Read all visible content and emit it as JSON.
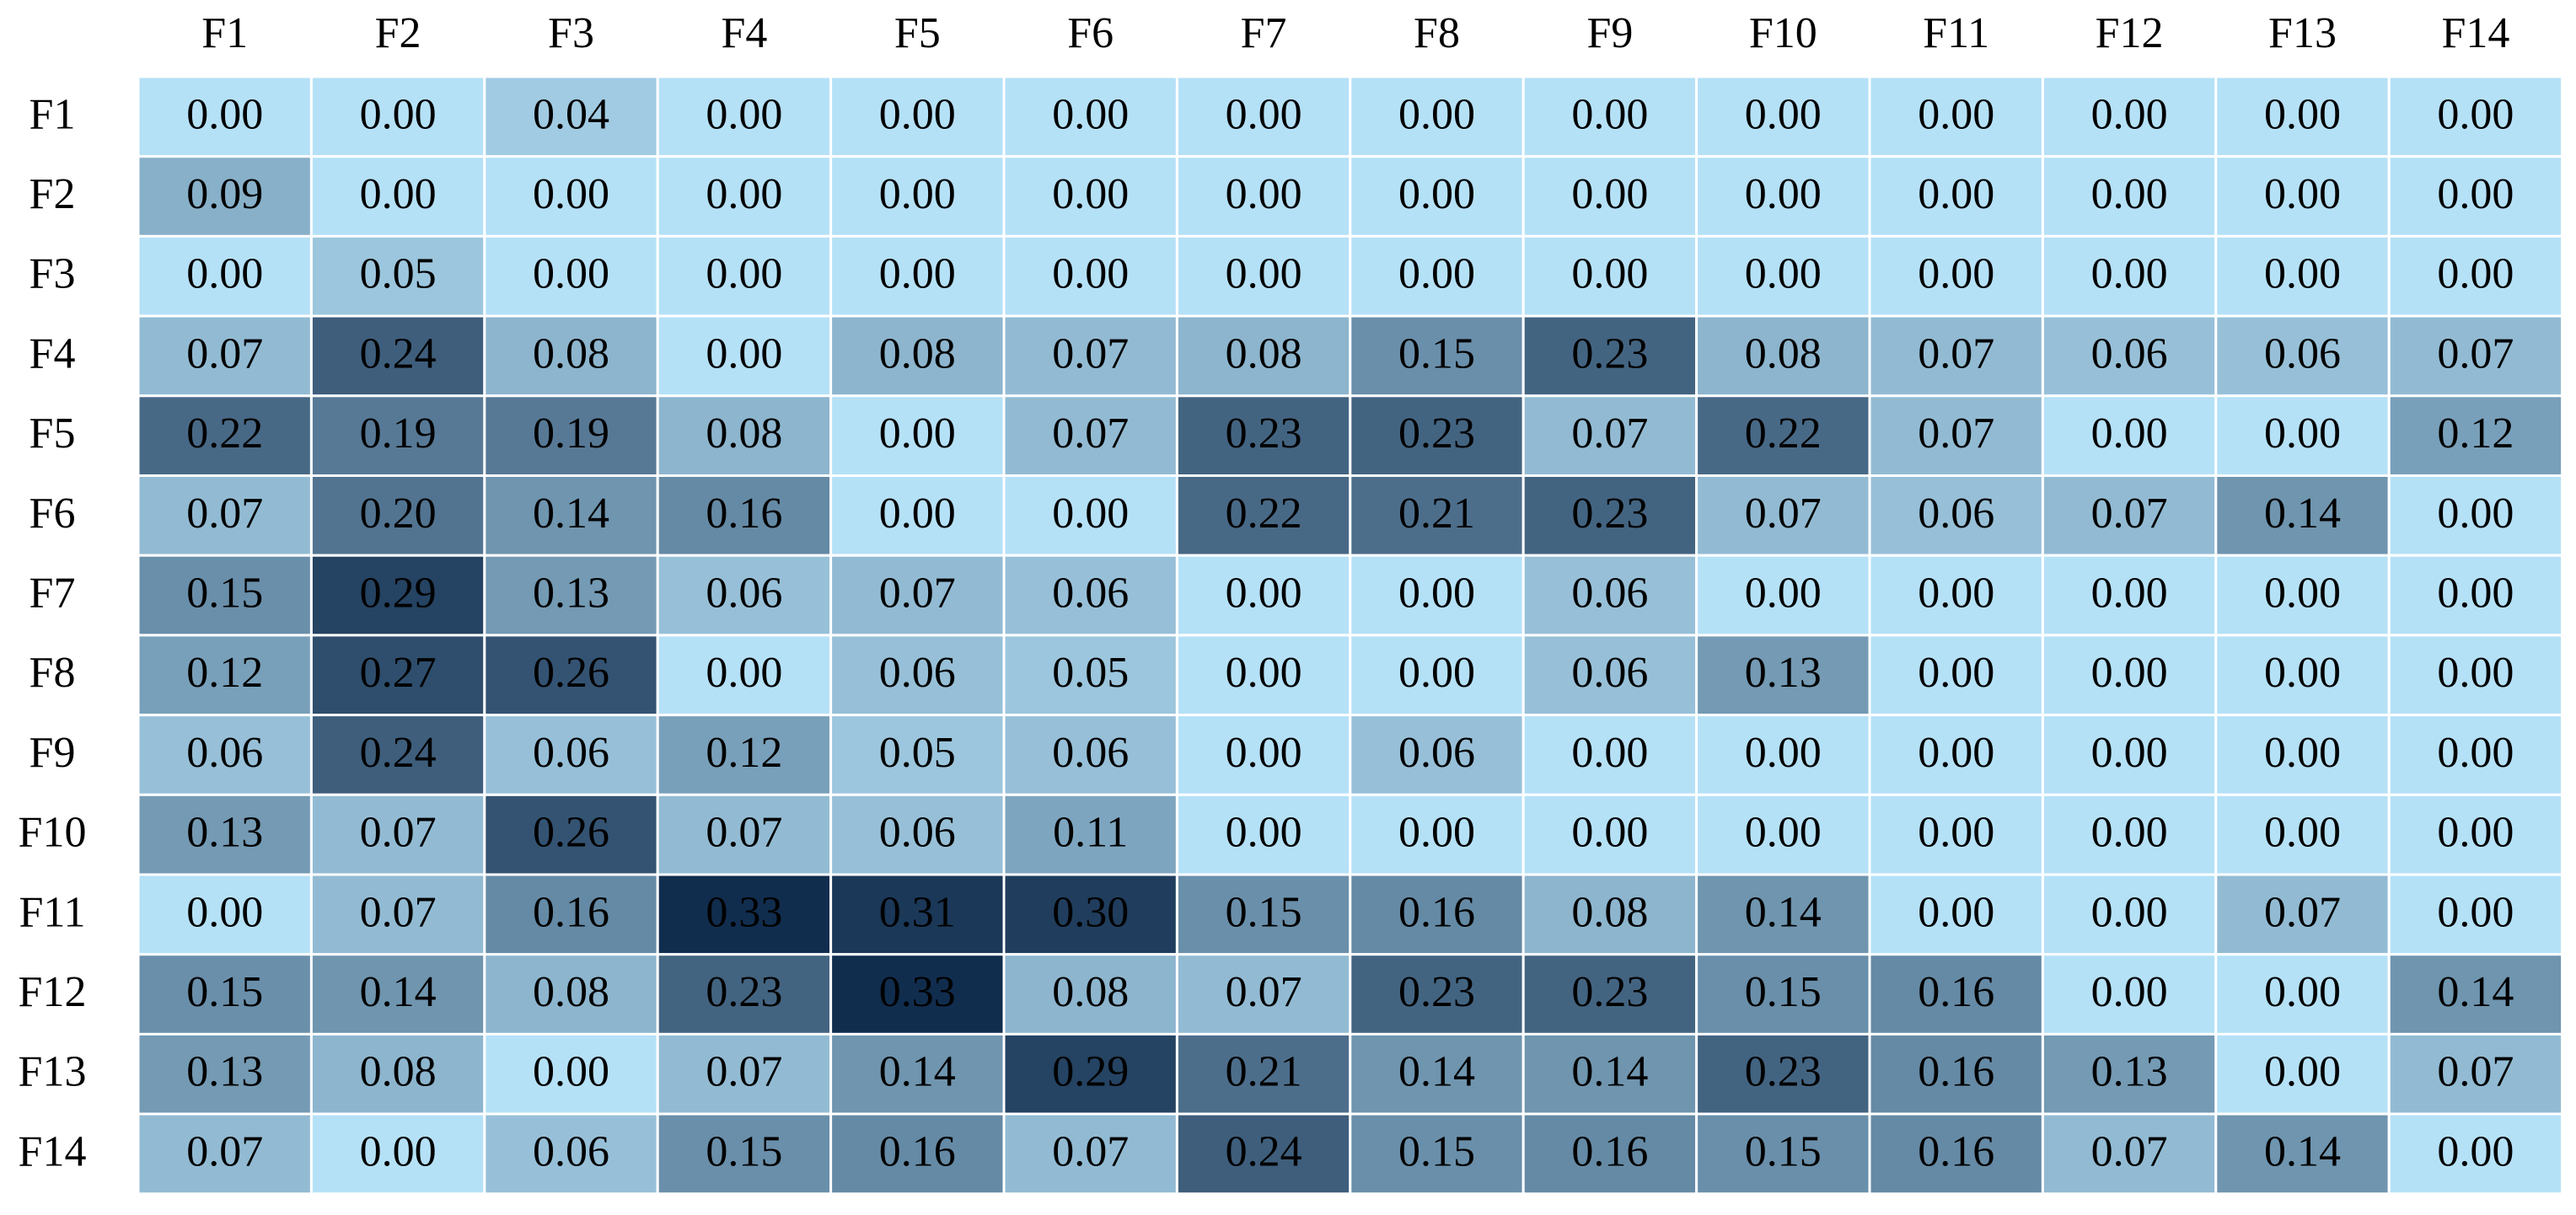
{
  "chart_data": {
    "type": "heatmap",
    "title": "",
    "xlabel": "",
    "ylabel": "",
    "x_labels": [
      "F1",
      "F2",
      "F3",
      "F4",
      "F5",
      "F6",
      "F7",
      "F8",
      "F9",
      "F10",
      "F11",
      "F12",
      "F13",
      "F14"
    ],
    "y_labels": [
      "F1",
      "F2",
      "F3",
      "F4",
      "F5",
      "F6",
      "F7",
      "F8",
      "F9",
      "F10",
      "F11",
      "F12",
      "F13",
      "F14"
    ],
    "values": [
      [
        0.0,
        0.0,
        0.04,
        0.0,
        0.0,
        0.0,
        0.0,
        0.0,
        0.0,
        0.0,
        0.0,
        0.0,
        0.0,
        0.0
      ],
      [
        0.09,
        0.0,
        0.0,
        0.0,
        0.0,
        0.0,
        0.0,
        0.0,
        0.0,
        0.0,
        0.0,
        0.0,
        0.0,
        0.0
      ],
      [
        0.0,
        0.05,
        0.0,
        0.0,
        0.0,
        0.0,
        0.0,
        0.0,
        0.0,
        0.0,
        0.0,
        0.0,
        0.0,
        0.0
      ],
      [
        0.07,
        0.24,
        0.08,
        0.0,
        0.08,
        0.07,
        0.08,
        0.15,
        0.23,
        0.08,
        0.07,
        0.06,
        0.06,
        0.07
      ],
      [
        0.22,
        0.19,
        0.19,
        0.08,
        0.0,
        0.07,
        0.23,
        0.23,
        0.07,
        0.22,
        0.07,
        0.0,
        0.0,
        0.12
      ],
      [
        0.07,
        0.2,
        0.14,
        0.16,
        0.0,
        0.0,
        0.22,
        0.21,
        0.23,
        0.07,
        0.06,
        0.07,
        0.14,
        0.0
      ],
      [
        0.15,
        0.29,
        0.13,
        0.06,
        0.07,
        0.06,
        0.0,
        0.0,
        0.06,
        0.0,
        0.0,
        0.0,
        0.0,
        0.0
      ],
      [
        0.12,
        0.27,
        0.26,
        0.0,
        0.06,
        0.05,
        0.0,
        0.0,
        0.06,
        0.13,
        0.0,
        0.0,
        0.0,
        0.0
      ],
      [
        0.06,
        0.24,
        0.06,
        0.12,
        0.05,
        0.06,
        0.0,
        0.06,
        0.0,
        0.0,
        0.0,
        0.0,
        0.0,
        0.0
      ],
      [
        0.13,
        0.07,
        0.26,
        0.07,
        0.06,
        0.11,
        0.0,
        0.0,
        0.0,
        0.0,
        0.0,
        0.0,
        0.0,
        0.0
      ],
      [
        0.0,
        0.07,
        0.16,
        0.33,
        0.31,
        0.3,
        0.15,
        0.16,
        0.08,
        0.14,
        0.0,
        0.0,
        0.07,
        0.0
      ],
      [
        0.15,
        0.14,
        0.08,
        0.23,
        0.33,
        0.08,
        0.07,
        0.23,
        0.23,
        0.15,
        0.16,
        0.0,
        0.0,
        0.14
      ],
      [
        0.13,
        0.08,
        0.0,
        0.07,
        0.14,
        0.29,
        0.21,
        0.14,
        0.14,
        0.23,
        0.16,
        0.13,
        0.0,
        0.07
      ],
      [
        0.07,
        0.0,
        0.06,
        0.15,
        0.16,
        0.07,
        0.24,
        0.15,
        0.16,
        0.15,
        0.16,
        0.07,
        0.14,
        0.0
      ]
    ],
    "value_range": [
      0.0,
      0.33
    ],
    "colormap": {
      "low": "#b5e1f7",
      "high": "#112d4e"
    },
    "cell_border_color": "#ffffff",
    "text_color": "#000000",
    "grid": false,
    "legend": "none"
  }
}
